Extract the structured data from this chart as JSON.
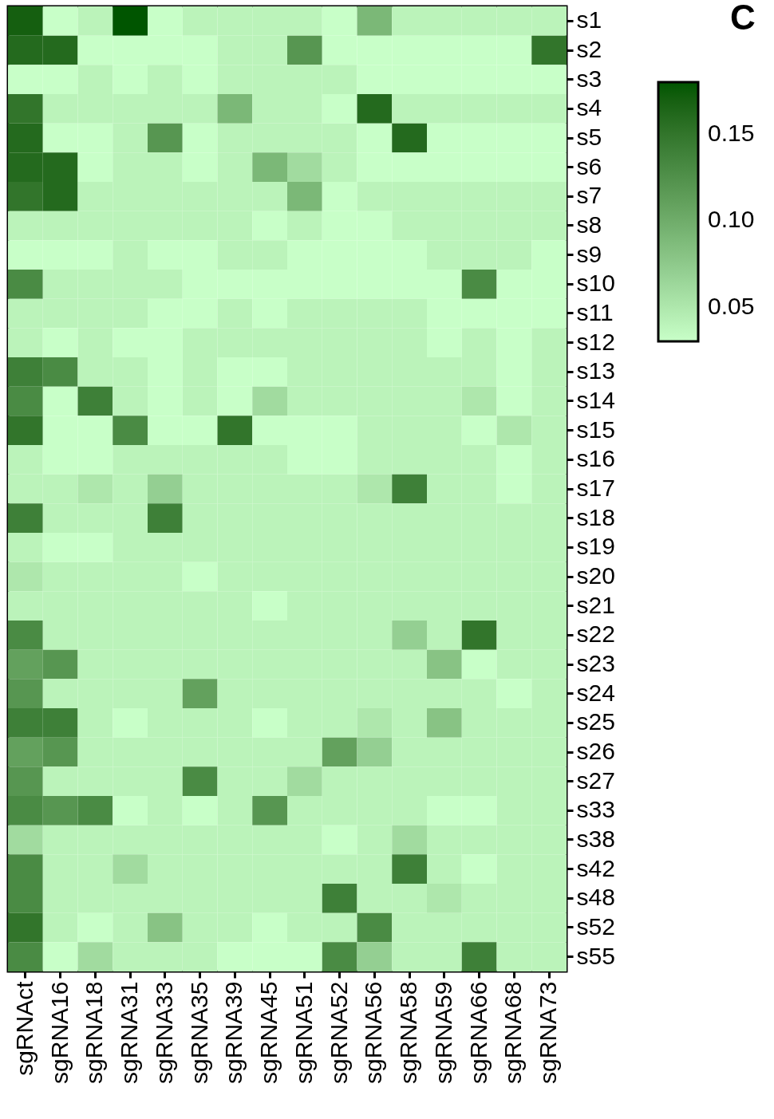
{
  "chart_data": {
    "type": "heatmap",
    "annotations": [
      "C"
    ],
    "categories": [
      "sgRNAct",
      "sgRNA16",
      "sgRNA18",
      "sgRNA31",
      "sgRNA33",
      "sgRNA35",
      "sgRNA39",
      "sgRNA45",
      "sgRNA51",
      "sgRNA52",
      "sgRNA56",
      "sgRNA58",
      "sgRNA59",
      "sgRNA66",
      "sgRNA68",
      "sgRNA73"
    ],
    "y_categories": [
      "s1",
      "s2",
      "s3",
      "s4",
      "s5",
      "s6",
      "s7",
      "s8",
      "s9",
      "s10",
      "s11",
      "s12",
      "s13",
      "s14",
      "s15",
      "s16",
      "s17",
      "s18",
      "s19",
      "s20",
      "s21",
      "s22",
      "s23",
      "s24",
      "s25",
      "s26",
      "s27",
      "s33",
      "s38",
      "s42",
      "s48",
      "s52",
      "s55"
    ],
    "cells": [
      [
        0.17,
        0.03,
        0.04,
        0.18,
        0.03,
        0.04,
        0.04,
        0.04,
        0.04,
        0.03,
        0.09,
        0.04,
        0.04,
        0.04,
        0.04,
        0.04
      ],
      [
        0.16,
        0.16,
        0.03,
        0.03,
        0.03,
        0.03,
        0.04,
        0.04,
        0.12,
        0.03,
        0.03,
        0.03,
        0.03,
        0.03,
        0.03,
        0.15
      ],
      [
        0.03,
        0.03,
        0.04,
        0.03,
        0.04,
        0.03,
        0.04,
        0.04,
        0.04,
        0.04,
        0.03,
        0.03,
        0.03,
        0.03,
        0.03,
        0.03
      ],
      [
        0.15,
        0.04,
        0.04,
        0.04,
        0.04,
        0.04,
        0.09,
        0.04,
        0.04,
        0.03,
        0.16,
        0.04,
        0.04,
        0.04,
        0.04,
        0.04
      ],
      [
        0.16,
        0.03,
        0.03,
        0.04,
        0.12,
        0.03,
        0.04,
        0.04,
        0.04,
        0.04,
        0.03,
        0.16,
        0.03,
        0.03,
        0.03,
        0.03
      ],
      [
        0.16,
        0.16,
        0.03,
        0.04,
        0.04,
        0.03,
        0.04,
        0.09,
        0.06,
        0.04,
        0.03,
        0.03,
        0.03,
        0.03,
        0.03,
        0.03
      ],
      [
        0.15,
        0.16,
        0.04,
        0.04,
        0.04,
        0.04,
        0.04,
        0.04,
        0.09,
        0.03,
        0.04,
        0.04,
        0.04,
        0.04,
        0.04,
        0.04
      ],
      [
        0.04,
        0.04,
        0.04,
        0.04,
        0.04,
        0.04,
        0.04,
        0.03,
        0.04,
        0.03,
        0.03,
        0.04,
        0.04,
        0.04,
        0.04,
        0.04
      ],
      [
        0.03,
        0.03,
        0.03,
        0.04,
        0.03,
        0.03,
        0.04,
        0.04,
        0.03,
        0.03,
        0.03,
        0.03,
        0.04,
        0.04,
        0.04,
        0.03
      ],
      [
        0.13,
        0.04,
        0.04,
        0.04,
        0.04,
        0.03,
        0.03,
        0.03,
        0.03,
        0.03,
        0.03,
        0.03,
        0.03,
        0.13,
        0.03,
        0.03
      ],
      [
        0.04,
        0.04,
        0.04,
        0.04,
        0.03,
        0.03,
        0.04,
        0.03,
        0.04,
        0.04,
        0.04,
        0.04,
        0.03,
        0.03,
        0.03,
        0.03
      ],
      [
        0.04,
        0.03,
        0.04,
        0.03,
        0.03,
        0.04,
        0.04,
        0.04,
        0.04,
        0.04,
        0.04,
        0.04,
        0.03,
        0.04,
        0.03,
        0.04
      ],
      [
        0.14,
        0.13,
        0.04,
        0.04,
        0.03,
        0.04,
        0.03,
        0.03,
        0.04,
        0.04,
        0.04,
        0.04,
        0.04,
        0.04,
        0.03,
        0.04
      ],
      [
        0.13,
        0.03,
        0.14,
        0.04,
        0.03,
        0.04,
        0.03,
        0.06,
        0.04,
        0.04,
        0.04,
        0.04,
        0.04,
        0.05,
        0.03,
        0.04
      ],
      [
        0.15,
        0.03,
        0.03,
        0.13,
        0.03,
        0.03,
        0.15,
        0.03,
        0.03,
        0.03,
        0.04,
        0.04,
        0.04,
        0.03,
        0.05,
        0.04
      ],
      [
        0.04,
        0.03,
        0.03,
        0.04,
        0.04,
        0.04,
        0.04,
        0.04,
        0.03,
        0.03,
        0.04,
        0.04,
        0.04,
        0.04,
        0.03,
        0.04
      ],
      [
        0.04,
        0.04,
        0.05,
        0.04,
        0.07,
        0.04,
        0.04,
        0.04,
        0.04,
        0.04,
        0.05,
        0.14,
        0.04,
        0.04,
        0.03,
        0.04
      ],
      [
        0.14,
        0.04,
        0.04,
        0.04,
        0.14,
        0.04,
        0.04,
        0.04,
        0.04,
        0.04,
        0.04,
        0.04,
        0.04,
        0.04,
        0.04,
        0.04
      ],
      [
        0.04,
        0.03,
        0.03,
        0.04,
        0.04,
        0.04,
        0.04,
        0.04,
        0.04,
        0.04,
        0.04,
        0.04,
        0.04,
        0.04,
        0.04,
        0.04
      ],
      [
        0.05,
        0.04,
        0.04,
        0.04,
        0.04,
        0.03,
        0.04,
        0.04,
        0.04,
        0.04,
        0.04,
        0.04,
        0.04,
        0.04,
        0.04,
        0.04
      ],
      [
        0.04,
        0.04,
        0.04,
        0.04,
        0.04,
        0.04,
        0.04,
        0.03,
        0.04,
        0.04,
        0.04,
        0.04,
        0.04,
        0.04,
        0.04,
        0.04
      ],
      [
        0.13,
        0.04,
        0.04,
        0.04,
        0.04,
        0.04,
        0.04,
        0.04,
        0.04,
        0.04,
        0.04,
        0.07,
        0.04,
        0.15,
        0.04,
        0.04
      ],
      [
        0.11,
        0.12,
        0.04,
        0.04,
        0.04,
        0.04,
        0.04,
        0.04,
        0.04,
        0.04,
        0.04,
        0.04,
        0.08,
        0.03,
        0.04,
        0.04
      ],
      [
        0.12,
        0.04,
        0.04,
        0.04,
        0.04,
        0.11,
        0.04,
        0.04,
        0.04,
        0.04,
        0.04,
        0.04,
        0.04,
        0.04,
        0.03,
        0.04
      ],
      [
        0.14,
        0.14,
        0.04,
        0.03,
        0.04,
        0.04,
        0.04,
        0.03,
        0.04,
        0.04,
        0.05,
        0.04,
        0.08,
        0.04,
        0.04,
        0.04
      ],
      [
        0.11,
        0.12,
        0.04,
        0.04,
        0.04,
        0.04,
        0.04,
        0.04,
        0.04,
        0.11,
        0.07,
        0.04,
        0.04,
        0.04,
        0.04,
        0.04
      ],
      [
        0.12,
        0.04,
        0.04,
        0.04,
        0.04,
        0.13,
        0.04,
        0.04,
        0.06,
        0.04,
        0.04,
        0.04,
        0.04,
        0.04,
        0.04,
        0.04
      ],
      [
        0.13,
        0.12,
        0.13,
        0.03,
        0.04,
        0.03,
        0.04,
        0.12,
        0.04,
        0.04,
        0.04,
        0.04,
        0.03,
        0.03,
        0.04,
        0.04
      ],
      [
        0.06,
        0.04,
        0.04,
        0.04,
        0.04,
        0.04,
        0.04,
        0.04,
        0.04,
        0.03,
        0.04,
        0.06,
        0.04,
        0.04,
        0.04,
        0.04
      ],
      [
        0.13,
        0.04,
        0.04,
        0.06,
        0.04,
        0.04,
        0.04,
        0.04,
        0.04,
        0.04,
        0.04,
        0.14,
        0.04,
        0.03,
        0.04,
        0.04
      ],
      [
        0.13,
        0.04,
        0.04,
        0.04,
        0.04,
        0.04,
        0.04,
        0.04,
        0.04,
        0.14,
        0.04,
        0.04,
        0.05,
        0.04,
        0.04,
        0.04
      ],
      [
        0.15,
        0.04,
        0.03,
        0.04,
        0.08,
        0.04,
        0.04,
        0.03,
        0.04,
        0.04,
        0.13,
        0.04,
        0.04,
        0.04,
        0.04,
        0.04
      ],
      [
        0.13,
        0.03,
        0.06,
        0.04,
        0.04,
        0.04,
        0.03,
        0.03,
        0.03,
        0.13,
        0.07,
        0.04,
        0.04,
        0.14,
        0.04,
        0.04
      ]
    ],
    "clim": [
      0.03,
      0.18
    ],
    "cticks": [
      0.05,
      {
        "value": 0.1,
        "label": "0.10"
      },
      0.15
    ]
  }
}
